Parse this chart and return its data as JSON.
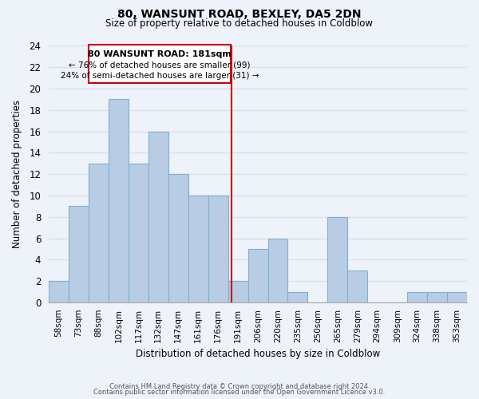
{
  "title1": "80, WANSUNT ROAD, BEXLEY, DA5 2DN",
  "title2": "Size of property relative to detached houses in Coldblow",
  "xlabel": "Distribution of detached houses by size in Coldblow",
  "ylabel": "Number of detached properties",
  "bin_labels": [
    "58sqm",
    "73sqm",
    "88sqm",
    "102sqm",
    "117sqm",
    "132sqm",
    "147sqm",
    "161sqm",
    "176sqm",
    "191sqm",
    "206sqm",
    "220sqm",
    "235sqm",
    "250sqm",
    "265sqm",
    "279sqm",
    "294sqm",
    "309sqm",
    "324sqm",
    "338sqm",
    "353sqm"
  ],
  "bar_heights": [
    2,
    9,
    13,
    19,
    13,
    16,
    12,
    10,
    10,
    2,
    5,
    6,
    1,
    0,
    8,
    3,
    0,
    0,
    1,
    1,
    1
  ],
  "bar_color": "#b8cce4",
  "bar_edge_color": "#7fafd4",
  "vline_x_index": 8.67,
  "annotation_text1": "80 WANSUNT ROAD: 181sqm",
  "annotation_text2": "← 76% of detached houses are smaller (99)",
  "annotation_text3": "24% of semi-detached houses are larger (31) →",
  "annotation_box_color": "#ffffff",
  "annotation_box_edge": "#cc0000",
  "vline_color": "#cc0000",
  "footer1": "Contains HM Land Registry data © Crown copyright and database right 2024.",
  "footer2": "Contains public sector information licensed under the Open Government Licence v3.0.",
  "ylim": [
    0,
    24
  ],
  "yticks": [
    0,
    2,
    4,
    6,
    8,
    10,
    12,
    14,
    16,
    18,
    20,
    22,
    24
  ],
  "bg_color": "#eef2f9",
  "grid_color": "#d8e0ee"
}
